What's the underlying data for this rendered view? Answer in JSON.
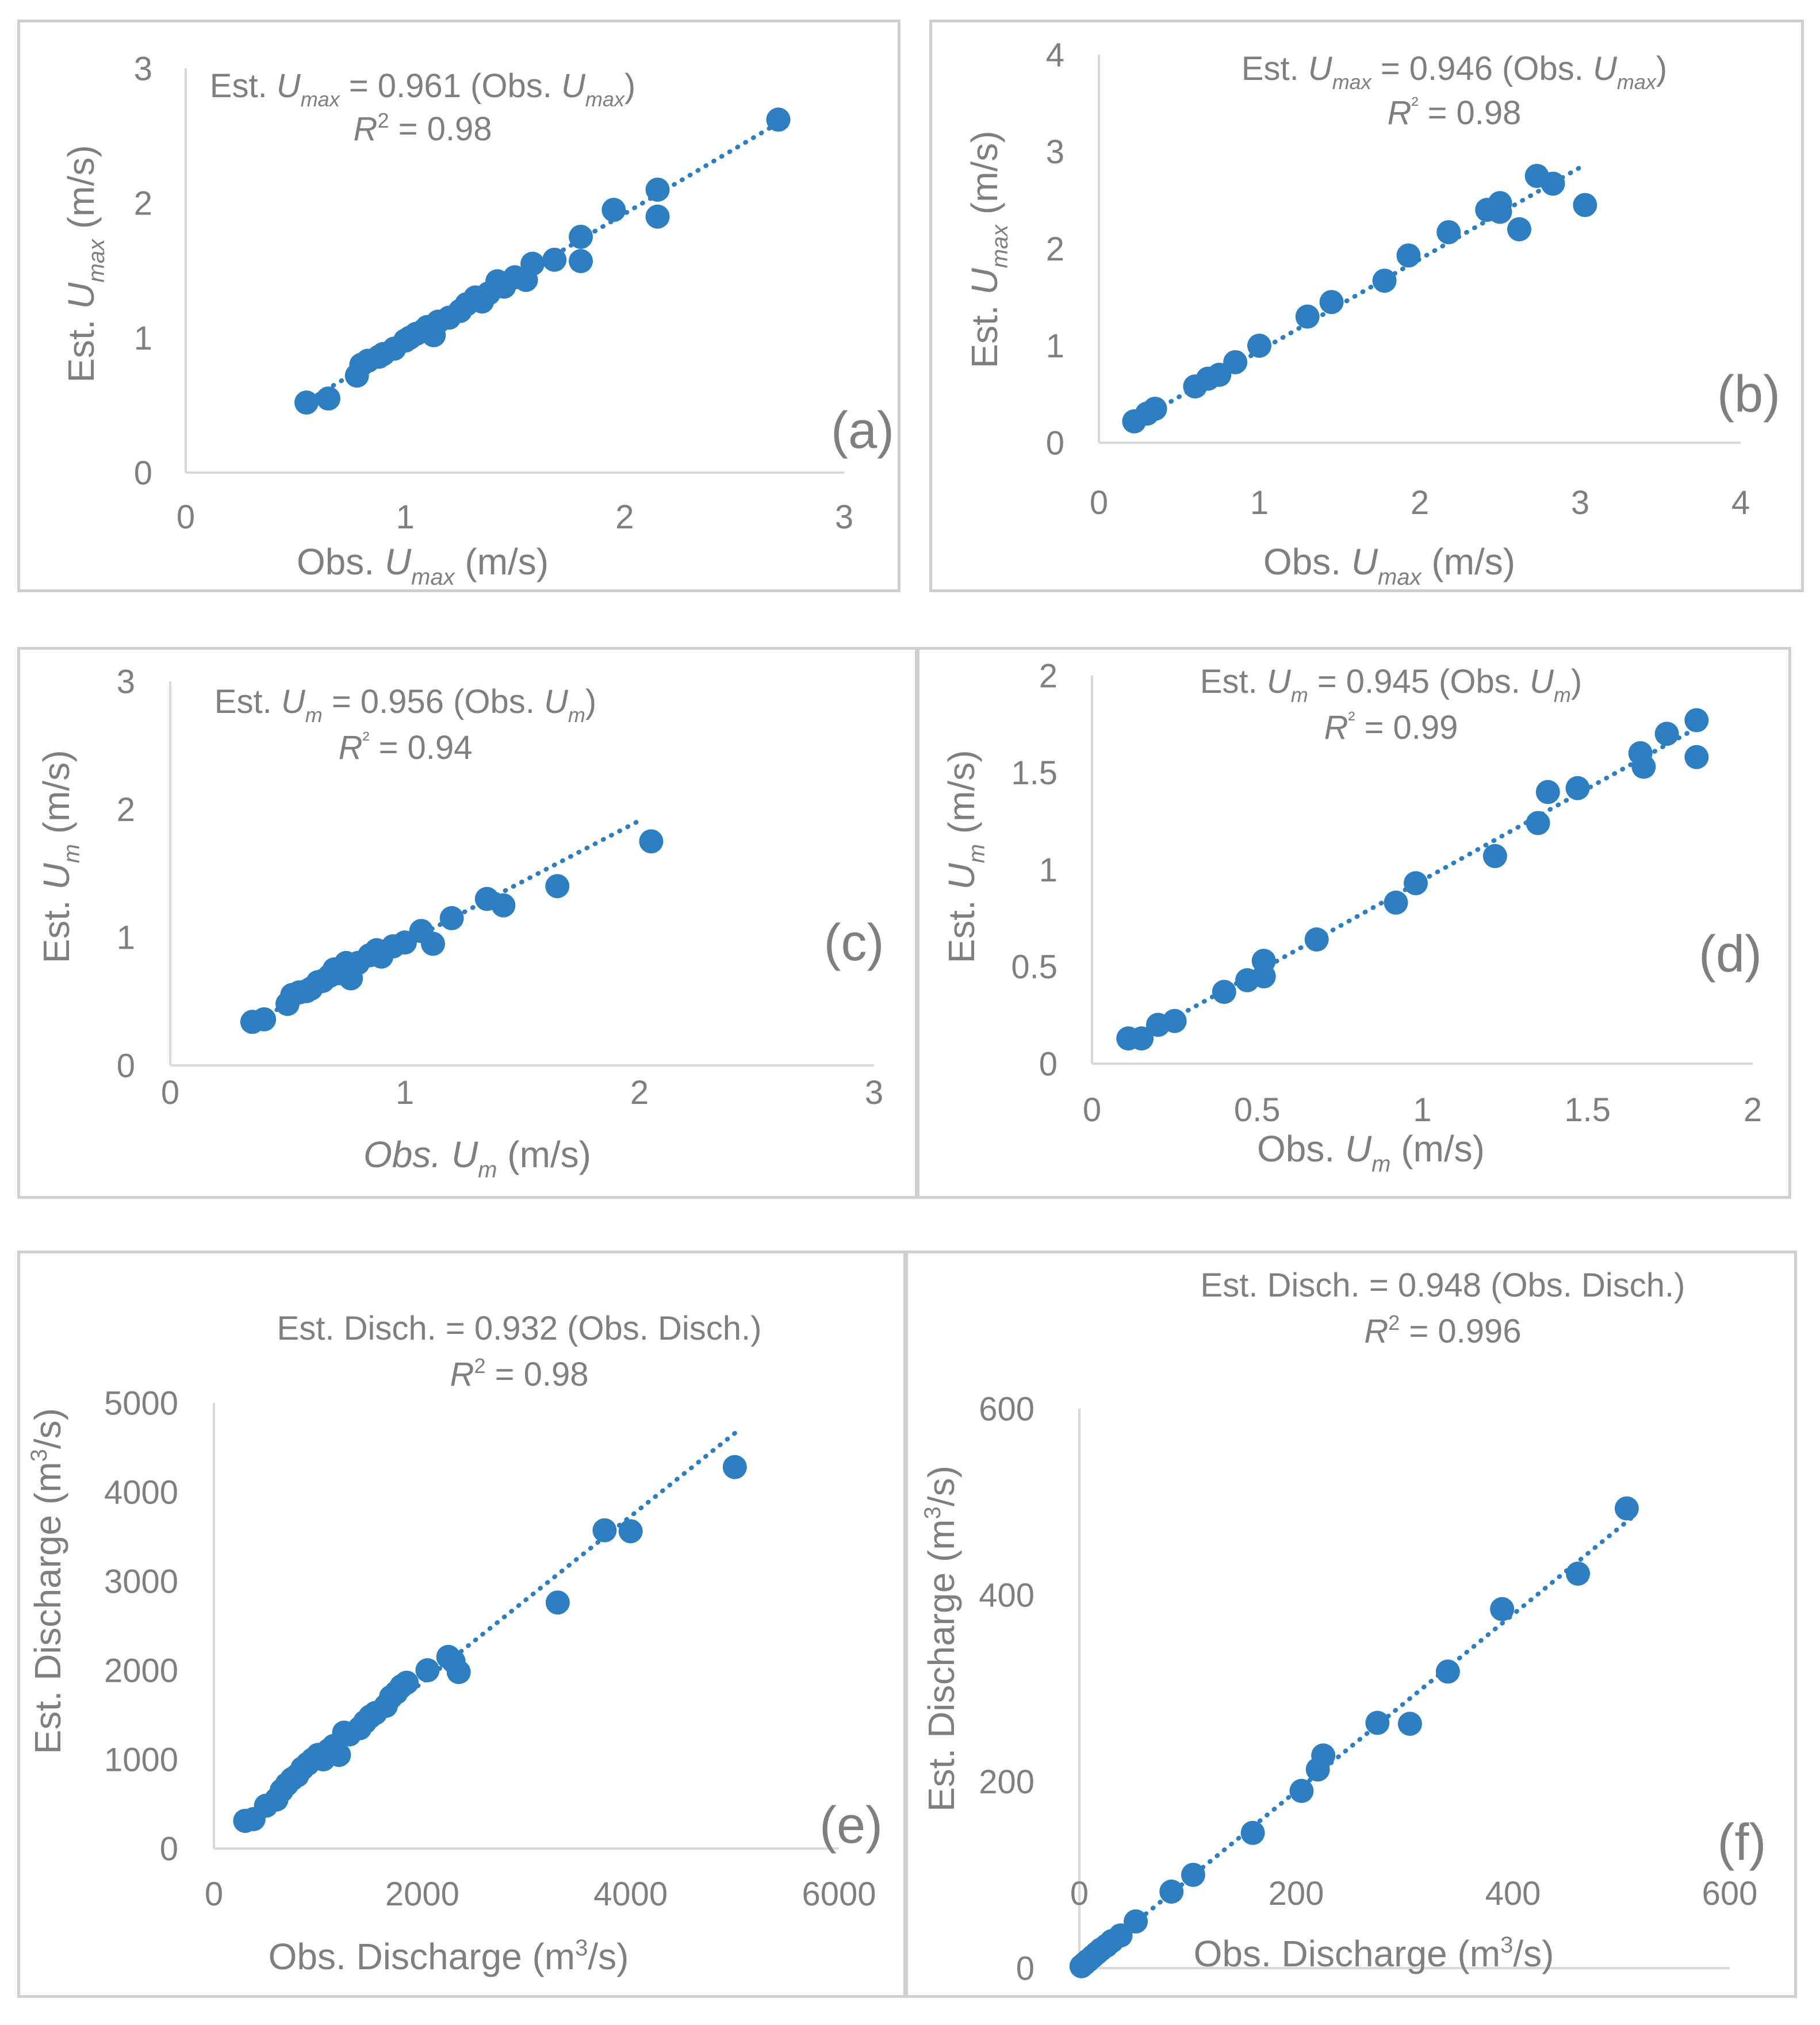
{
  "colors": {
    "marker": "#2e7fc1",
    "trendline": "#2e7fc1",
    "text": "#7f7f7f",
    "axis": "#d9d9d9",
    "border": "#cfcfcf"
  },
  "chart_data": [
    {
      "id": "a",
      "type": "scatter",
      "panel_label": "(a)",
      "xlabel": {
        "pre": "Obs. ",
        "var": "U",
        "sub": "max",
        "post": " (m/s)"
      },
      "ylabel": {
        "pre": "Est. ",
        "var": "U",
        "sub": "max",
        "post": " (m/s)"
      },
      "equation": {
        "pre": "Est. ",
        "var": "U",
        "sub": "max",
        "mid": "  = 0.961 (Obs. ",
        "var2": "U",
        "sub2": "max",
        "post": ")"
      },
      "r2": {
        "var": "R",
        "sup": "2",
        "post": " = 0.98"
      },
      "xlim": [
        0,
        3
      ],
      "ylim": [
        0,
        3
      ],
      "xticks": [
        "0",
        "1",
        "2",
        "3"
      ],
      "yticks": [
        "0",
        "1",
        "2",
        "3"
      ],
      "trendline": {
        "slope": 0.961,
        "x_range": [
          0.6,
          2.7
        ]
      },
      "x": [
        0.55,
        0.65,
        0.78,
        0.8,
        0.83,
        0.88,
        0.9,
        0.95,
        1.0,
        1.02,
        1.05,
        1.08,
        1.1,
        1.13,
        1.15,
        1.2,
        1.25,
        1.28,
        1.32,
        1.35,
        1.38,
        1.42,
        1.45,
        1.5,
        1.55,
        1.58,
        1.68,
        1.8,
        1.8,
        1.95,
        2.15,
        2.15,
        2.7
      ],
      "y": [
        0.52,
        0.55,
        0.72,
        0.8,
        0.83,
        0.86,
        0.88,
        0.92,
        0.98,
        1.0,
        1.03,
        1.05,
        1.08,
        1.02,
        1.12,
        1.15,
        1.2,
        1.25,
        1.3,
        1.27,
        1.33,
        1.42,
        1.38,
        1.45,
        1.43,
        1.55,
        1.58,
        1.75,
        1.57,
        1.95,
        2.1,
        1.9,
        2.62
      ]
    },
    {
      "id": "b",
      "type": "scatter",
      "panel_label": "(b)",
      "xlabel": {
        "pre": "Obs. ",
        "var": "U",
        "sub": "max",
        "post": " (m/s)"
      },
      "ylabel": {
        "pre": "Est. ",
        "var": "U",
        "sub": "max",
        "post": " (m/s)"
      },
      "equation": {
        "pre": "Est. ",
        "var": "U",
        "sub": "max",
        "mid": " = 0.946 (Obs. ",
        "var2": "U",
        "sub2": "max",
        "post": ")"
      },
      "r2": {
        "var": "R",
        "sup": "²",
        "post": " = 0.98"
      },
      "xlim": [
        0,
        4
      ],
      "ylim": [
        0,
        4
      ],
      "xticks": [
        "0",
        "1",
        "2",
        "3",
        "4"
      ],
      "yticks": [
        "0",
        "1",
        "2",
        "3",
        "4"
      ],
      "trendline": {
        "slope": 0.946,
        "x_range": [
          0.2,
          3.0
        ]
      },
      "x": [
        0.22,
        0.3,
        0.35,
        0.6,
        0.68,
        0.75,
        0.85,
        1.0,
        1.3,
        1.45,
        1.78,
        1.93,
        2.18,
        2.42,
        2.5,
        2.5,
        2.62,
        2.73,
        2.83,
        3.03
      ],
      "y": [
        0.22,
        0.3,
        0.35,
        0.58,
        0.66,
        0.7,
        0.83,
        1.0,
        1.3,
        1.45,
        1.67,
        1.93,
        2.17,
        2.4,
        2.47,
        2.38,
        2.2,
        2.75,
        2.67,
        2.45
      ]
    },
    {
      "id": "c",
      "type": "scatter",
      "panel_label": "(c)",
      "xlabel": {
        "pre_italic": "Obs. ",
        "var": "U",
        "sub": "m",
        "post": " (m/s)"
      },
      "ylabel": {
        "pre": "Est. ",
        "var": "U",
        "sub": "m",
        "post": " (m/s)"
      },
      "equation": {
        "pre": "Est. ",
        "var": "U",
        "sub": "m",
        "mid": " = 0.956 (Obs. ",
        "var2": "U",
        "sub2": "m",
        "post": ")"
      },
      "r2": {
        "var": "R",
        "sup": "²",
        "post": " = 0.94"
      },
      "xlim": [
        0,
        3
      ],
      "ylim": [
        0,
        3
      ],
      "xticks": [
        "0",
        "1",
        "2",
        "3"
      ],
      "yticks": [
        "0",
        "1",
        "2",
        "3"
      ],
      "trendline": {
        "slope": 0.956,
        "x_range": [
          0.35,
          2.0
        ]
      },
      "x": [
        0.35,
        0.4,
        0.5,
        0.52,
        0.55,
        0.58,
        0.6,
        0.63,
        0.65,
        0.68,
        0.7,
        0.72,
        0.75,
        0.77,
        0.8,
        0.85,
        0.88,
        0.9,
        0.95,
        1.0,
        1.07,
        1.12,
        1.2,
        1.35,
        1.42,
        1.65,
        2.05
      ],
      "y": [
        0.34,
        0.36,
        0.48,
        0.55,
        0.57,
        0.58,
        0.6,
        0.65,
        0.66,
        0.7,
        0.75,
        0.72,
        0.8,
        0.68,
        0.8,
        0.86,
        0.9,
        0.85,
        0.93,
        0.96,
        1.05,
        0.95,
        1.15,
        1.3,
        1.25,
        1.4,
        1.75
      ]
    },
    {
      "id": "d",
      "type": "scatter",
      "panel_label": "(d)",
      "xlabel": {
        "pre": "Obs. ",
        "var": "U",
        "sub": "m",
        "post": " (m/s)"
      },
      "ylabel": {
        "pre": "Est. ",
        "var": "U",
        "sub": "m",
        "post": " (m/s)"
      },
      "equation": {
        "pre": "Est. ",
        "var": "U",
        "sub": "m",
        "mid": " = 0.945 (Obs. ",
        "var2": "U",
        "sub2": "m",
        "post": ")"
      },
      "r2": {
        "var": "R",
        "sup": "²",
        "post": " = 0.99"
      },
      "xlim": [
        0,
        2
      ],
      "ylim": [
        0,
        2
      ],
      "xticks": [
        "0",
        "0.5",
        "1",
        "1.5",
        "2"
      ],
      "yticks": [
        "0",
        "0.5",
        "1",
        "1.5",
        "2"
      ],
      "trendline": {
        "slope": 0.945,
        "x_range": [
          0.12,
          1.82
        ]
      },
      "x": [
        0.11,
        0.15,
        0.2,
        0.25,
        0.4,
        0.47,
        0.52,
        0.52,
        0.68,
        0.92,
        0.98,
        1.22,
        1.35,
        1.38,
        1.47,
        1.66,
        1.67,
        1.74,
        1.83,
        1.83
      ],
      "y": [
        0.13,
        0.13,
        0.2,
        0.22,
        0.37,
        0.43,
        0.45,
        0.53,
        0.64,
        0.83,
        0.93,
        1.07,
        1.24,
        1.4,
        1.42,
        1.6,
        1.53,
        1.7,
        1.77,
        1.58
      ]
    },
    {
      "id": "e",
      "type": "scatter",
      "panel_label": "(e)",
      "xlabel": {
        "pre": "Obs. Discharge  (m",
        "sup": "3",
        "post": "/s)"
      },
      "ylabel": {
        "pre": "Est. Discharge  (m",
        "sup": "3",
        "post": "/s)"
      },
      "equation": {
        "plain": "Est. Disch. = 0.932 (Obs. Disch.)"
      },
      "r2": {
        "var": "R",
        "sup": "2",
        "post": " = 0.98"
      },
      "xlim": [
        0,
        6000
      ],
      "ylim": [
        0,
        5000
      ],
      "xticks": [
        "0",
        "2000",
        "4000",
        "6000"
      ],
      "yticks": [
        "0",
        "1000",
        "2000",
        "3000",
        "4000",
        "5000"
      ],
      "trendline": {
        "slope": 0.932,
        "x_range": [
          300,
          5000
        ]
      },
      "x": [
        300,
        380,
        500,
        600,
        650,
        700,
        750,
        800,
        850,
        900,
        950,
        1000,
        1050,
        1100,
        1150,
        1200,
        1250,
        1300,
        1400,
        1450,
        1500,
        1550,
        1650,
        1700,
        1750,
        1800,
        1850,
        2050,
        2250,
        2300,
        2350,
        3300,
        3750,
        4000,
        5000
      ],
      "y": [
        310,
        330,
        480,
        550,
        650,
        720,
        780,
        820,
        900,
        950,
        1000,
        1050,
        1000,
        1100,
        1150,
        1050,
        1300,
        1280,
        1350,
        1420,
        1480,
        1520,
        1600,
        1700,
        1750,
        1820,
        1860,
        2000,
        2150,
        2100,
        1980,
        2760,
        3570,
        3560,
        4280
      ]
    },
    {
      "id": "f",
      "type": "scatter",
      "panel_label": "(f)",
      "xlabel": {
        "pre": "Obs. Discharge (m",
        "sup": "3",
        "post": "/s)"
      },
      "ylabel": {
        "pre": "Est. Discharge (m",
        "sup": "3",
        "post": "/s)"
      },
      "equation": {
        "plain": "Est. Disch. = 0.948 (Obs. Disch.)"
      },
      "r2": {
        "var": "R",
        "sup": "2",
        "post": " = 0.996"
      },
      "xlim": [
        0,
        600
      ],
      "ylim": [
        0,
        600
      ],
      "xticks": [
        "0",
        "200",
        "400",
        "600"
      ],
      "yticks": [
        "0",
        "200",
        "400",
        "600"
      ],
      "trendline": {
        "slope": 0.948,
        "x_range": [
          2,
          510
        ]
      },
      "x": [
        2,
        5,
        8,
        12,
        16,
        20,
        25,
        30,
        38,
        52,
        85,
        105,
        160,
        205,
        220,
        225,
        275,
        305,
        340,
        390,
        460,
        505
      ],
      "y": [
        2,
        5,
        8,
        12,
        16,
        20,
        24,
        29,
        35,
        50,
        82,
        100,
        145,
        190,
        213,
        228,
        263,
        262,
        318,
        385,
        423,
        493
      ]
    }
  ]
}
